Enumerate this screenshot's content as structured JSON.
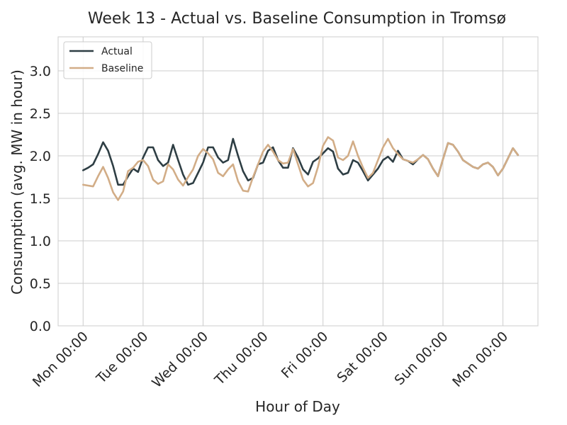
{
  "chart_data": {
    "type": "line",
    "title": "Week 13 - Actual vs. Baseline Consumption in Tromsø",
    "xlabel": "Hour of Day",
    "ylabel": "Consumption (avg. MW in hour)",
    "ylim": [
      0,
      3.4
    ],
    "xlim": [
      -10,
      182
    ],
    "yticks": [
      0.0,
      0.5,
      1.0,
      1.5,
      2.0,
      2.5,
      3.0
    ],
    "ytick_labels": [
      "0.0",
      "0.5",
      "1.0",
      "1.5",
      "2.0",
      "2.5",
      "3.0"
    ],
    "xticks": [
      0,
      24,
      48,
      72,
      96,
      120,
      144,
      168
    ],
    "xtick_labels": [
      "Mon 00:00",
      "Tue 00:00",
      "Wed 00:00",
      "Thu 00:00",
      "Fri 00:00",
      "Sat 00:00",
      "Sun 00:00",
      "Mon 00:00"
    ],
    "grid": true,
    "legend_position": "top-left",
    "series": [
      {
        "name": "Actual",
        "color": "#2e3e44",
        "x": [
          0,
          2,
          4,
          6,
          8,
          10,
          12,
          14,
          16,
          18,
          20,
          22,
          24,
          26,
          28,
          30,
          32,
          34,
          36,
          38,
          40,
          42,
          44,
          46,
          48,
          50,
          52,
          54,
          56,
          58,
          60,
          62,
          64,
          66,
          68,
          70,
          72,
          74,
          76,
          78,
          80,
          82,
          84,
          86,
          88,
          90,
          92,
          94,
          96,
          98,
          100,
          102,
          104,
          106,
          108,
          110,
          112,
          114,
          116,
          118,
          120,
          122,
          124,
          126,
          128,
          130,
          132,
          134,
          136,
          138,
          140,
          142,
          144,
          146,
          148,
          150,
          152,
          154,
          156,
          158,
          160,
          162,
          164,
          166,
          168,
          170,
          172,
          174
        ],
        "y": [
          1.83,
          1.86,
          1.9,
          2.02,
          2.16,
          2.06,
          1.88,
          1.66,
          1.66,
          1.76,
          1.85,
          1.81,
          1.98,
          2.1,
          2.1,
          1.95,
          1.88,
          1.92,
          2.13,
          1.95,
          1.78,
          1.66,
          1.68,
          1.8,
          1.92,
          2.1,
          2.1,
          1.98,
          1.92,
          1.95,
          2.2,
          2.0,
          1.82,
          1.71,
          1.74,
          1.9,
          1.92,
          2.06,
          2.1,
          1.95,
          1.86,
          1.86,
          2.09,
          1.98,
          1.84,
          1.78,
          1.93,
          1.97,
          2.03,
          2.09,
          2.05,
          1.85,
          1.78,
          1.8,
          1.95,
          1.92,
          1.82,
          1.71,
          1.78,
          1.85,
          1.95,
          1.99,
          1.93,
          2.06,
          1.96,
          1.94,
          1.9,
          1.96,
          2.01,
          1.96,
          1.85,
          1.76,
          1.96,
          2.15,
          2.13,
          2.05,
          1.95,
          1.91,
          1.87,
          1.85,
          1.9,
          1.92,
          1.87,
          1.77,
          1.85,
          1.97,
          2.09,
          2.01
        ]
      },
      {
        "name": "Baseline",
        "color": "#d2ad87",
        "x": [
          0,
          2,
          4,
          6,
          8,
          10,
          12,
          14,
          16,
          18,
          20,
          22,
          24,
          26,
          28,
          30,
          32,
          34,
          36,
          38,
          40,
          42,
          44,
          46,
          48,
          50,
          52,
          54,
          56,
          58,
          60,
          62,
          64,
          66,
          68,
          70,
          72,
          74,
          76,
          78,
          80,
          82,
          84,
          86,
          88,
          90,
          92,
          94,
          96,
          98,
          100,
          102,
          104,
          106,
          108,
          110,
          112,
          114,
          116,
          118,
          120,
          122,
          124,
          126,
          128,
          130,
          132,
          134,
          136,
          138,
          140,
          142,
          144,
          146,
          148,
          150,
          152,
          154,
          156,
          158,
          160,
          162,
          164,
          166,
          168,
          170,
          172,
          174
        ],
        "y": [
          1.66,
          1.65,
          1.64,
          1.76,
          1.87,
          1.74,
          1.57,
          1.48,
          1.58,
          1.82,
          1.86,
          1.93,
          1.95,
          1.88,
          1.72,
          1.67,
          1.7,
          1.9,
          1.84,
          1.72,
          1.65,
          1.75,
          1.84,
          2.0,
          2.08,
          2.03,
          1.96,
          1.8,
          1.76,
          1.84,
          1.9,
          1.7,
          1.59,
          1.58,
          1.75,
          1.9,
          2.05,
          2.13,
          2.05,
          1.95,
          1.91,
          1.92,
          2.08,
          1.9,
          1.72,
          1.64,
          1.68,
          1.87,
          2.12,
          2.22,
          2.18,
          1.98,
          1.95,
          2.0,
          2.17,
          2.0,
          1.86,
          1.74,
          1.8,
          1.95,
          2.1,
          2.2,
          2.09,
          2.02,
          1.96,
          1.94,
          1.92,
          1.96,
          2.01,
          1.96,
          1.85,
          1.76,
          1.96,
          2.15,
          2.13,
          2.05,
          1.95,
          1.91,
          1.87,
          1.85,
          1.9,
          1.92,
          1.87,
          1.77,
          1.85,
          1.97,
          2.09,
          2.01
        ]
      }
    ]
  }
}
